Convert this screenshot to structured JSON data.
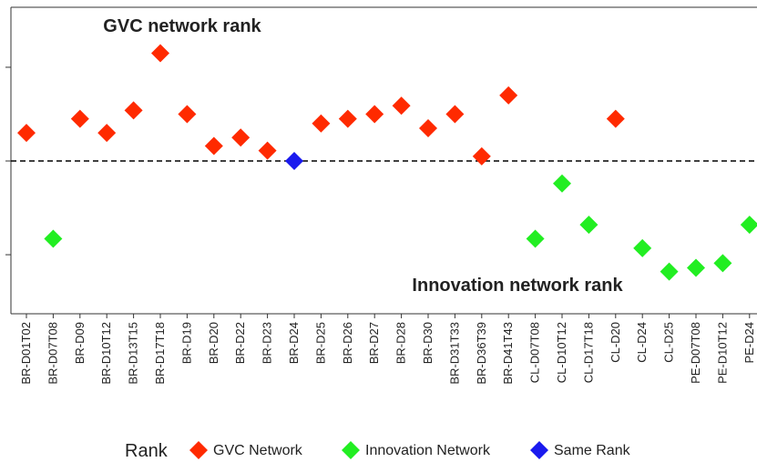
{
  "chart_data": {
    "type": "scatter",
    "annotations": [
      "GVC network rank",
      "Innovation network rank"
    ],
    "legend_title": "Rank",
    "categories": [
      "BR-D01T02",
      "BR-D07T08",
      "BR-D09",
      "BR-D10T12",
      "BR-D13T15",
      "BR-D17T18",
      "BR-D19",
      "BR-D20",
      "BR-D22",
      "BR-D23",
      "BR-D24",
      "BR-D25",
      "BR-D26",
      "BR-D27",
      "BR-D28",
      "BR-D30",
      "BR-D31T33",
      "BR-D36T39",
      "BR-D41T43",
      "CL-D07T08",
      "CL-D10T12",
      "CL-D17T18",
      "CL-D20",
      "CL-D24",
      "CL-D25",
      "PE-D07T08",
      "PE-D10T12",
      "PE-D24"
    ],
    "series": [
      {
        "name": "GVC Network",
        "color": "#ff2a00",
        "values": [
          0.3,
          null,
          0.45,
          0.3,
          0.54,
          1.15,
          0.5,
          0.16,
          0.25,
          0.11,
          null,
          0.4,
          0.45,
          0.5,
          0.59,
          0.35,
          0.5,
          0.05,
          0.7,
          null,
          null,
          null,
          0.45,
          null,
          null,
          null,
          null,
          null
        ]
      },
      {
        "name": "Innovation Network",
        "color": "#22ee22",
        "values": [
          null,
          -0.83,
          null,
          null,
          null,
          null,
          null,
          null,
          null,
          null,
          null,
          null,
          null,
          null,
          null,
          null,
          null,
          null,
          null,
          -0.83,
          -0.24,
          -0.68,
          null,
          -0.93,
          -1.18,
          -1.14,
          -1.09,
          -0.68
        ]
      },
      {
        "name": "Same Rank",
        "color": "#1a1aee",
        "values": [
          null,
          null,
          null,
          null,
          null,
          null,
          null,
          null,
          null,
          null,
          0,
          null,
          null,
          null,
          null,
          null,
          null,
          null,
          null,
          null,
          null,
          null,
          null,
          null,
          null,
          null,
          null,
          null
        ]
      }
    ],
    "ylim": [
      -1.63,
      1.64
    ],
    "yticks": [
      -1,
      0,
      1
    ],
    "reference_line": 0
  }
}
